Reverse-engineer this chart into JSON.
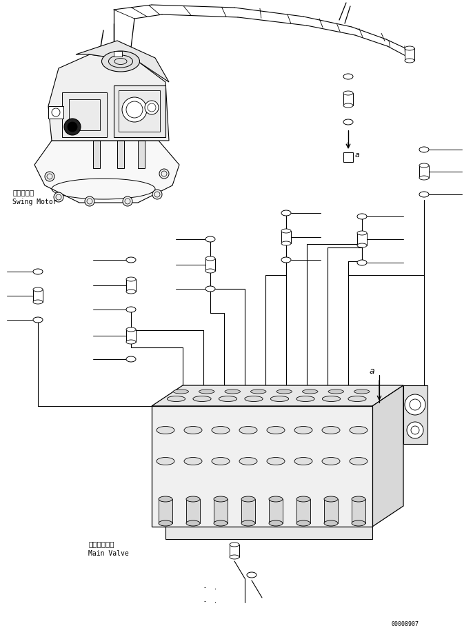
{
  "background_color": "#ffffff",
  "line_color": "#000000",
  "fig_width": 6.86,
  "fig_height": 9.12,
  "dpi": 100,
  "swing_motor_label_jp": "旋回モータ",
  "swing_motor_label_en": "Swing Motor",
  "main_valve_label_jp": "メインバルブ",
  "main_valve_label_en": "Main Valve",
  "serial_number": "00008907",
  "label_a": "a"
}
